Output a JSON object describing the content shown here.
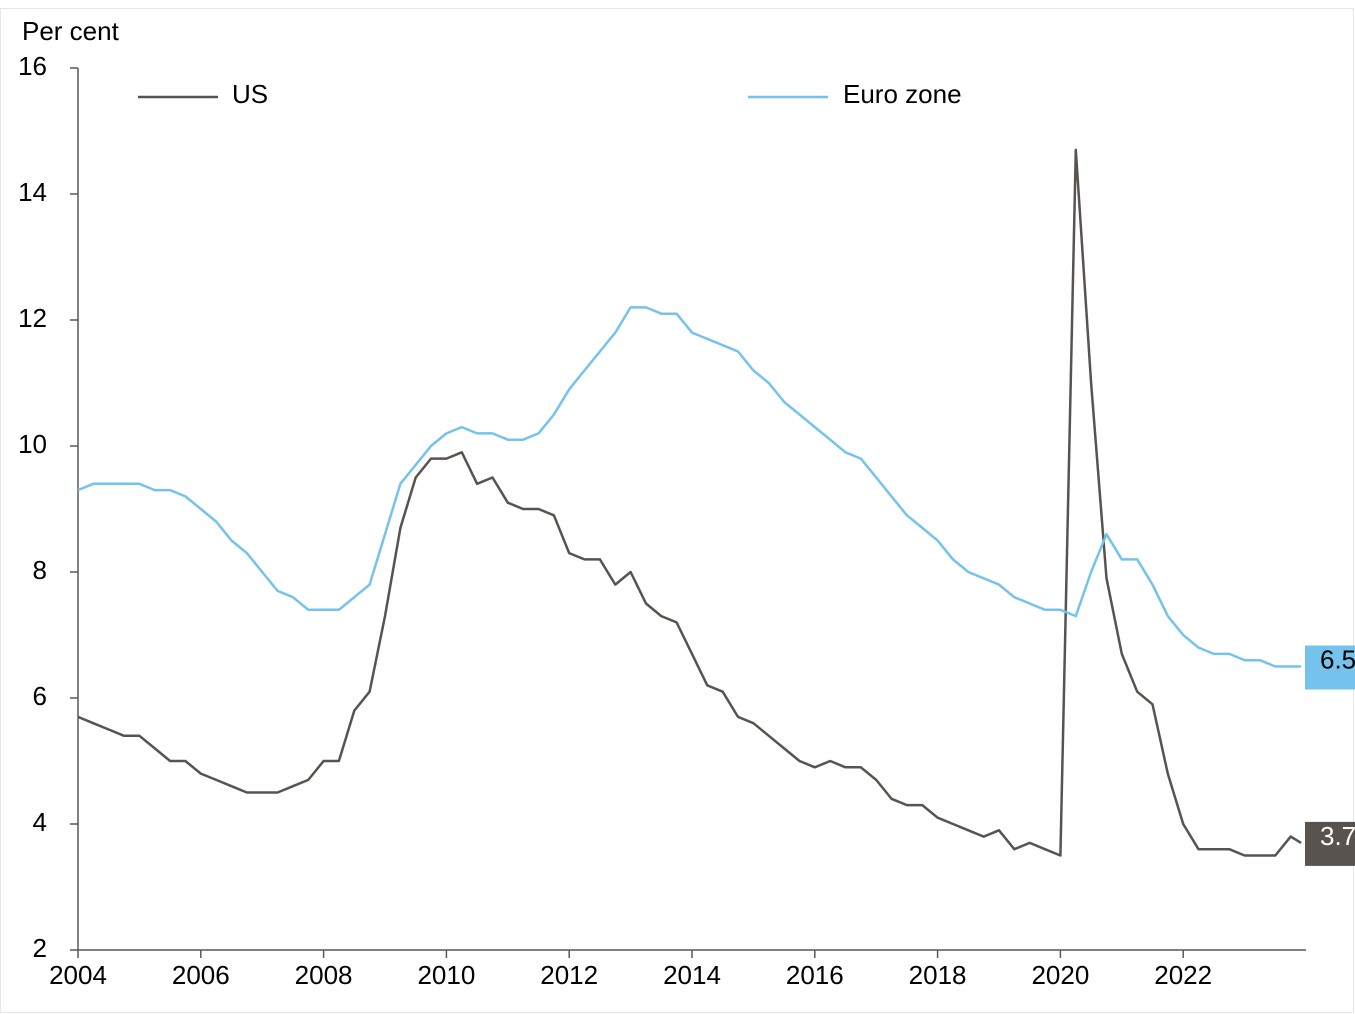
{
  "chart_data": {
    "type": "line",
    "y_label": "Per cent",
    "x": [
      2004,
      2004.25,
      2004.5,
      2004.75,
      2005,
      2005.25,
      2005.5,
      2005.75,
      2006,
      2006.25,
      2006.5,
      2006.75,
      2007,
      2007.25,
      2007.5,
      2007.75,
      2008,
      2008.25,
      2008.5,
      2008.75,
      2009,
      2009.25,
      2009.5,
      2009.75,
      2010,
      2010.25,
      2010.5,
      2010.75,
      2011,
      2011.25,
      2011.5,
      2011.75,
      2012,
      2012.25,
      2012.5,
      2012.75,
      2013,
      2013.25,
      2013.5,
      2013.75,
      2014,
      2014.25,
      2014.5,
      2014.75,
      2015,
      2015.25,
      2015.5,
      2015.75,
      2016,
      2016.25,
      2016.5,
      2016.75,
      2017,
      2017.25,
      2017.5,
      2017.75,
      2018,
      2018.25,
      2018.5,
      2018.75,
      2019,
      2019.25,
      2019.5,
      2019.75,
      2020,
      2020.25,
      2020.5,
      2020.75,
      2021,
      2021.25,
      2021.5,
      2021.75,
      2022,
      2022.25,
      2022.5,
      2022.75,
      2023,
      2023.25,
      2023.5,
      2023.75,
      2023.92
    ],
    "series": [
      {
        "name": "US",
        "color": "#595350",
        "values": [
          5.7,
          5.6,
          5.5,
          5.4,
          5.4,
          5.2,
          5.0,
          5.0,
          4.8,
          4.7,
          4.6,
          4.5,
          4.5,
          4.5,
          4.6,
          4.7,
          5.0,
          5.0,
          5.8,
          6.1,
          7.3,
          8.7,
          9.5,
          9.8,
          9.8,
          9.9,
          9.4,
          9.5,
          9.1,
          9.0,
          9.0,
          8.9,
          8.3,
          8.2,
          8.2,
          7.8,
          8.0,
          7.5,
          7.3,
          7.2,
          6.7,
          6.2,
          6.1,
          5.7,
          5.6,
          5.4,
          5.2,
          5.0,
          4.9,
          5.0,
          4.9,
          4.9,
          4.7,
          4.4,
          4.3,
          4.3,
          4.1,
          4.0,
          3.9,
          3.8,
          3.9,
          3.6,
          3.7,
          3.6,
          3.5,
          14.7,
          11.0,
          7.9,
          6.7,
          6.1,
          5.9,
          4.8,
          4.0,
          3.6,
          3.6,
          3.6,
          3.5,
          3.5,
          3.5,
          3.8,
          3.7
        ],
        "label_fill": "#595350",
        "label_color": "#ffffff"
      },
      {
        "name": "Euro zone",
        "color": "#75c3ec",
        "values": [
          9.3,
          9.4,
          9.4,
          9.4,
          9.4,
          9.3,
          9.3,
          9.2,
          9.0,
          8.8,
          8.5,
          8.3,
          8.0,
          7.7,
          7.6,
          7.4,
          7.4,
          7.4,
          7.6,
          7.8,
          8.6,
          9.4,
          9.7,
          10.0,
          10.2,
          10.3,
          10.2,
          10.2,
          10.1,
          10.1,
          10.2,
          10.5,
          10.9,
          11.2,
          11.5,
          11.8,
          12.2,
          12.2,
          12.1,
          12.1,
          11.8,
          11.7,
          11.6,
          11.5,
          11.2,
          11.0,
          10.7,
          10.5,
          10.3,
          10.1,
          9.9,
          9.8,
          9.5,
          9.2,
          8.9,
          8.7,
          8.5,
          8.2,
          8.0,
          7.9,
          7.8,
          7.6,
          7.5,
          7.4,
          7.4,
          7.3,
          8.0,
          8.6,
          8.2,
          8.2,
          7.8,
          7.3,
          7.0,
          6.8,
          6.7,
          6.7,
          6.6,
          6.6,
          6.5,
          6.5,
          6.5
        ],
        "label_fill": "#75c3ec",
        "label_color": "#000000"
      }
    ],
    "xlim": [
      2004,
      2024
    ],
    "xticks": [
      2004,
      2006,
      2008,
      2010,
      2012,
      2014,
      2016,
      2018,
      2020,
      2022
    ],
    "ylim": [
      2,
      16
    ],
    "yticks": [
      2,
      4,
      6,
      8,
      10,
      12,
      14,
      16
    ],
    "grid": false,
    "end_labels": true
  }
}
